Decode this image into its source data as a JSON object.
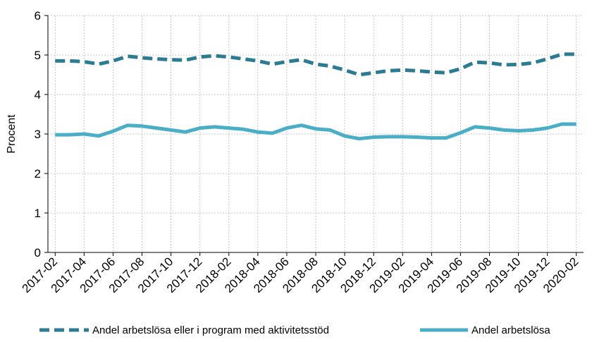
{
  "chart_data": {
    "type": "line",
    "ylabel": "Procent",
    "ylim": [
      0,
      6
    ],
    "yticks": [
      0,
      1,
      2,
      3,
      4,
      5,
      6
    ],
    "grid": true,
    "legend_position": "bottom",
    "x": [
      "2017-02",
      "2017-03",
      "2017-04",
      "2017-05",
      "2017-06",
      "2017-07",
      "2017-08",
      "2017-09",
      "2017-10",
      "2017-11",
      "2017-12",
      "2018-01",
      "2018-02",
      "2018-03",
      "2018-04",
      "2018-05",
      "2018-06",
      "2018-07",
      "2018-08",
      "2018-09",
      "2018-10",
      "2018-11",
      "2018-12",
      "2019-01",
      "2019-02",
      "2019-03",
      "2019-04",
      "2019-05",
      "2019-06",
      "2019-07",
      "2019-08",
      "2019-09",
      "2019-10",
      "2019-11",
      "2019-12",
      "2020-01",
      "2020-02"
    ],
    "xtick_labels": [
      "2017-02",
      "2017-04",
      "2017-06",
      "2017-08",
      "2017-10",
      "2017-12",
      "2018-02",
      "2018-04",
      "2018-06",
      "2018-08",
      "2018-10",
      "2018-12",
      "2019-02",
      "2019-04",
      "2019-06",
      "2019-08",
      "2019-10",
      "2019-12",
      "2020-02"
    ],
    "series": [
      {
        "name": "Andel arbetslösa eller i program med aktivitetsstöd",
        "color": "#2b7b92",
        "style": "dashed",
        "values": [
          4.85,
          4.85,
          4.83,
          4.77,
          4.85,
          4.97,
          4.93,
          4.9,
          4.88,
          4.87,
          4.95,
          4.98,
          4.95,
          4.9,
          4.85,
          4.77,
          4.83,
          4.88,
          4.77,
          4.72,
          4.62,
          4.5,
          4.55,
          4.6,
          4.62,
          4.6,
          4.57,
          4.55,
          4.65,
          4.82,
          4.8,
          4.75,
          4.76,
          4.8,
          4.9,
          5.02,
          5.02
        ]
      },
      {
        "name": "Andel arbetslösa",
        "color": "#4aaec6",
        "style": "solid",
        "values": [
          2.98,
          2.98,
          3.0,
          2.95,
          3.07,
          3.22,
          3.2,
          3.15,
          3.1,
          3.05,
          3.15,
          3.18,
          3.15,
          3.12,
          3.05,
          3.02,
          3.15,
          3.22,
          3.13,
          3.1,
          2.95,
          2.88,
          2.92,
          2.93,
          2.93,
          2.92,
          2.9,
          2.9,
          3.03,
          3.18,
          3.15,
          3.1,
          3.08,
          3.1,
          3.15,
          3.25,
          3.25
        ]
      }
    ]
  }
}
